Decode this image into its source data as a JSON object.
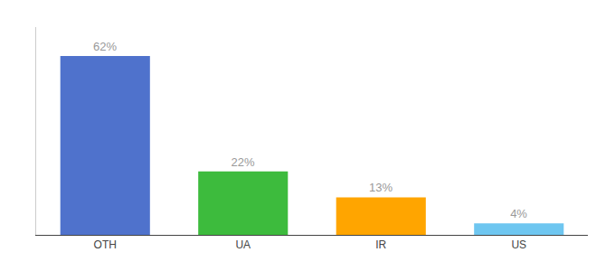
{
  "chart_data": {
    "type": "bar",
    "categories": [
      "OTH",
      "UA",
      "IR",
      "US"
    ],
    "values": [
      62,
      22,
      13,
      4
    ],
    "value_labels": [
      "62%",
      "22%",
      "13%",
      "4%"
    ],
    "colors": [
      "#4F72CC",
      "#3DBB3D",
      "#FFA500",
      "#6EC6F0"
    ],
    "ylim": [
      0,
      72
    ],
    "grid": false,
    "data_labels": true,
    "tick_labels": "x"
  }
}
